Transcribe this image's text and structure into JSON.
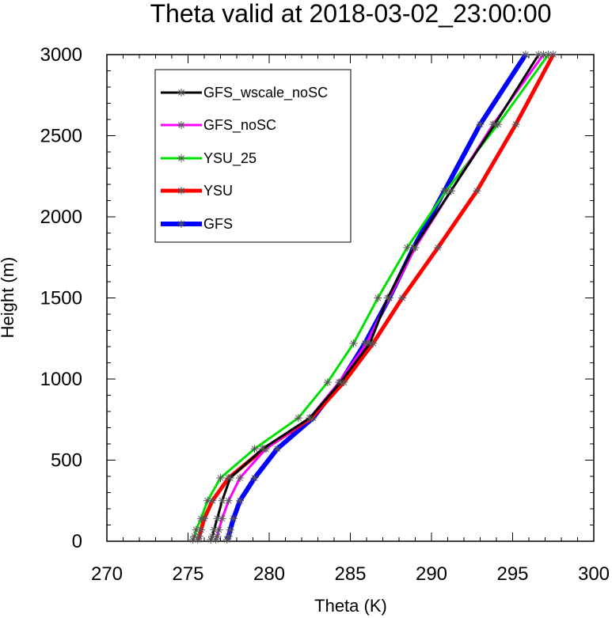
{
  "chart_data": {
    "type": "line",
    "title": "Theta valid at 2018-03-02_23:00:00",
    "xlabel": "Theta (K)",
    "ylabel": "Height (m)",
    "xlim": [
      270,
      300
    ],
    "ylim": [
      0,
      3000
    ],
    "xticks": [
      270,
      275,
      280,
      285,
      290,
      295,
      300
    ],
    "yticks": [
      0,
      500,
      1000,
      1500,
      2000,
      2500,
      3000
    ],
    "grid": false,
    "legend_position": "top-left inside",
    "marker": "asterisk",
    "series": [
      {
        "name": "GFS_wscale_noSC",
        "color": "#000000",
        "points": [
          [
            276.4,
            10
          ],
          [
            276.5,
            30
          ],
          [
            276.6,
            70
          ],
          [
            276.8,
            140
          ],
          [
            277.1,
            250
          ],
          [
            277.6,
            390
          ],
          [
            279.6,
            570
          ],
          [
            282.5,
            760
          ],
          [
            284.4,
            980
          ],
          [
            286.2,
            1220
          ],
          [
            287.3,
            1500
          ],
          [
            288.9,
            1810
          ],
          [
            291.2,
            2160
          ],
          [
            293.9,
            2570
          ],
          [
            296.6,
            3000
          ]
        ]
      },
      {
        "name": "GFS_noSC",
        "color": "#ff00ff",
        "points": [
          [
            276.7,
            10
          ],
          [
            276.8,
            30
          ],
          [
            276.9,
            70
          ],
          [
            277.1,
            140
          ],
          [
            277.5,
            250
          ],
          [
            278.2,
            390
          ],
          [
            279.8,
            570
          ],
          [
            282.5,
            760
          ],
          [
            284.3,
            980
          ],
          [
            286.0,
            1220
          ],
          [
            287.4,
            1500
          ],
          [
            289.0,
            1810
          ],
          [
            291.2,
            2160
          ],
          [
            293.8,
            2570
          ],
          [
            296.9,
            3000
          ]
        ]
      },
      {
        "name": "YSU_25",
        "color": "#00e000",
        "points": [
          [
            275.3,
            10
          ],
          [
            275.4,
            30
          ],
          [
            275.5,
            70
          ],
          [
            275.8,
            140
          ],
          [
            276.2,
            250
          ],
          [
            277.0,
            390
          ],
          [
            279.1,
            570
          ],
          [
            281.8,
            760
          ],
          [
            283.6,
            980
          ],
          [
            285.2,
            1220
          ],
          [
            286.7,
            1500
          ],
          [
            288.5,
            1810
          ],
          [
            290.9,
            2160
          ],
          [
            294.1,
            2570
          ],
          [
            297.2,
            3000
          ]
        ]
      },
      {
        "name": "YSU",
        "color": "#ff0000",
        "points": [
          [
            275.6,
            10
          ],
          [
            275.7,
            30
          ],
          [
            275.8,
            70
          ],
          [
            276.0,
            140
          ],
          [
            276.5,
            250
          ],
          [
            277.5,
            390
          ],
          [
            279.7,
            570
          ],
          [
            282.6,
            760
          ],
          [
            284.6,
            980
          ],
          [
            286.4,
            1220
          ],
          [
            288.2,
            1500
          ],
          [
            290.4,
            1810
          ],
          [
            292.8,
            2160
          ],
          [
            295.2,
            2570
          ],
          [
            297.5,
            3000
          ]
        ]
      },
      {
        "name": "GFS",
        "color": "#0000ff",
        "points": [
          [
            277.4,
            10
          ],
          [
            277.5,
            30
          ],
          [
            277.6,
            70
          ],
          [
            277.8,
            140
          ],
          [
            278.2,
            250
          ],
          [
            279.1,
            390
          ],
          [
            280.5,
            570
          ],
          [
            282.7,
            760
          ],
          [
            284.4,
            980
          ],
          [
            285.9,
            1220
          ],
          [
            287.4,
            1500
          ],
          [
            288.9,
            1810
          ],
          [
            290.8,
            2160
          ],
          [
            293.0,
            2570
          ],
          [
            295.8,
            3000
          ]
        ]
      }
    ]
  }
}
